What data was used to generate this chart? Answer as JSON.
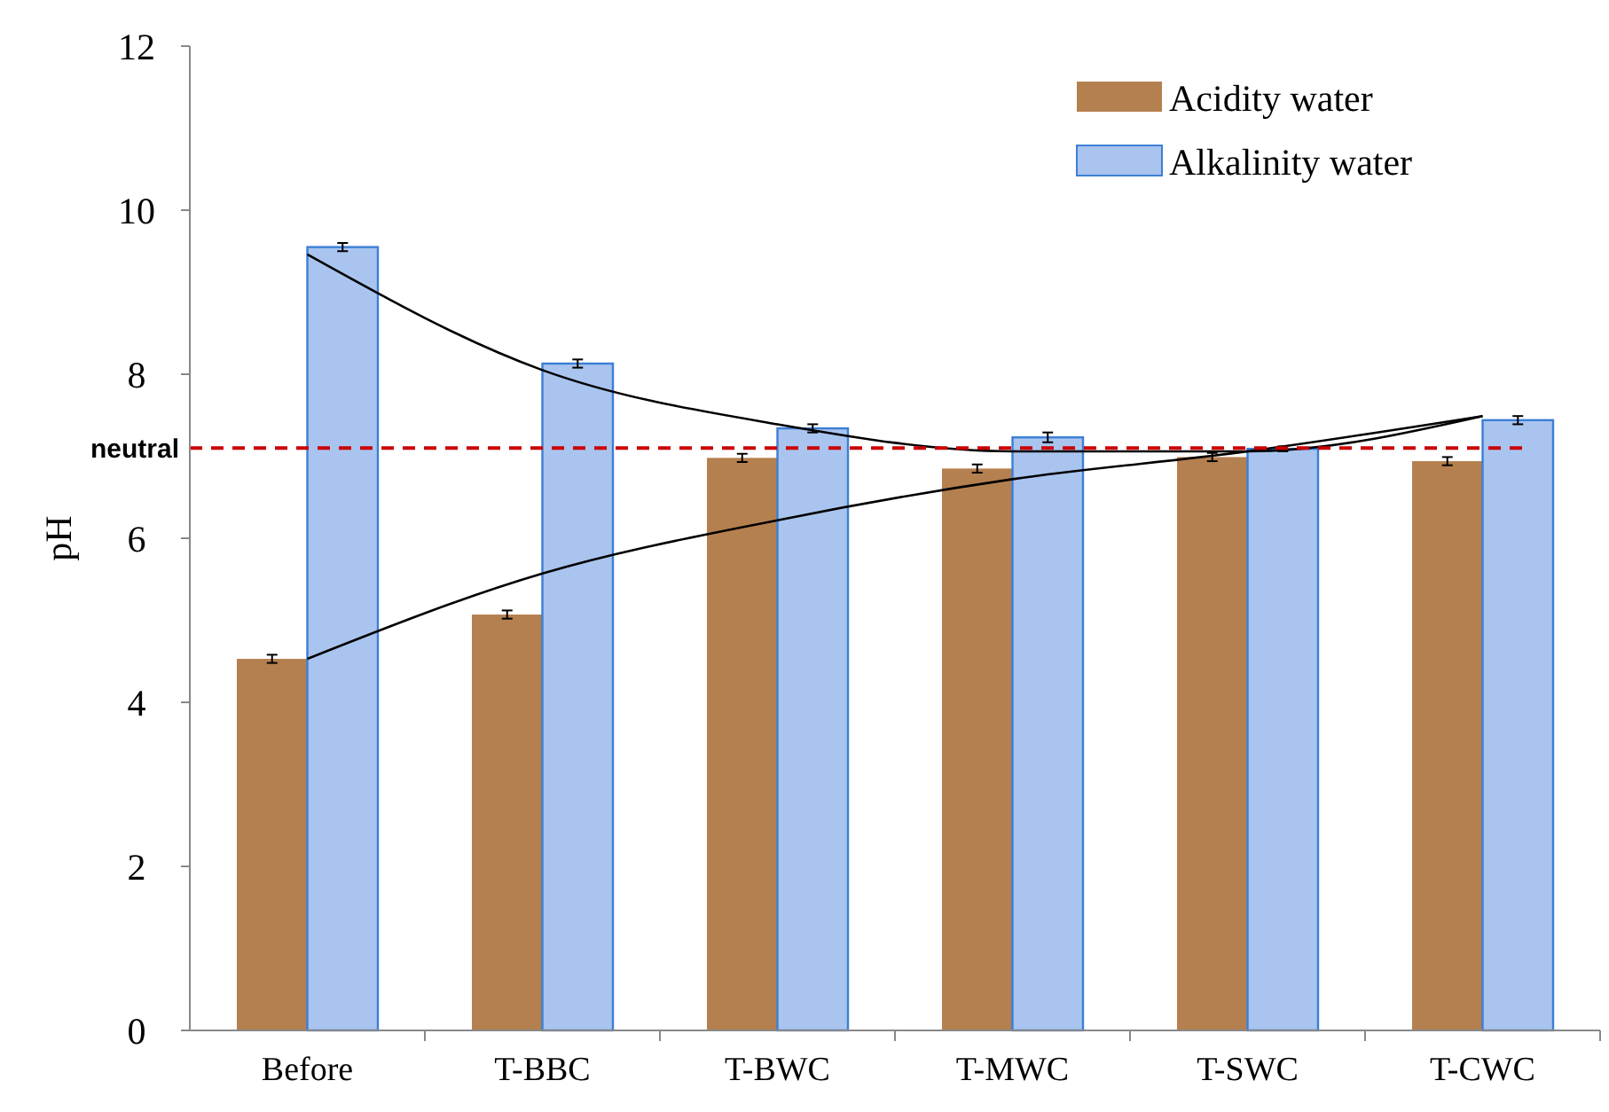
{
  "chart_data": {
    "type": "bar",
    "ylabel": "pH",
    "categories": [
      "Before",
      "T-BBC",
      "T-BWC",
      "T-MWC",
      "T-SWC",
      "T-CWC"
    ],
    "series": [
      {
        "name": "Acidity water",
        "color": "#b5804f",
        "values": [
          4.53,
          5.07,
          6.98,
          6.85,
          6.99,
          6.94
        ],
        "errors": [
          0.05,
          0.05,
          0.05,
          0.05,
          0.05,
          0.05
        ]
      },
      {
        "name": "Alkalinity water",
        "color": "#a9c4ee",
        "values": [
          9.55,
          8.13,
          7.34,
          7.23,
          7.09,
          7.44
        ],
        "errors": [
          0.05,
          0.05,
          0.05,
          0.06,
          0.03,
          0.05
        ]
      },
      {
        "type": "line",
        "color": "#000000",
        "values": [
          9.46,
          8.05,
          7.39,
          7.06,
          7.06,
          7.49
        ]
      },
      {
        "type": "line",
        "color": "#000000",
        "values": [
          4.53,
          5.57,
          6.22,
          6.72,
          7.06,
          7.49
        ]
      }
    ],
    "ylim": [
      0,
      12
    ],
    "yticks": [
      0,
      2,
      4,
      6,
      8,
      10,
      12
    ],
    "grid": false,
    "legend": "top right",
    "marker": "none",
    "ref_lines": [
      {
        "axis": "y",
        "value": 7.1,
        "label": "neutral",
        "color": "#cc0000",
        "line_style": "dashed"
      }
    ]
  }
}
